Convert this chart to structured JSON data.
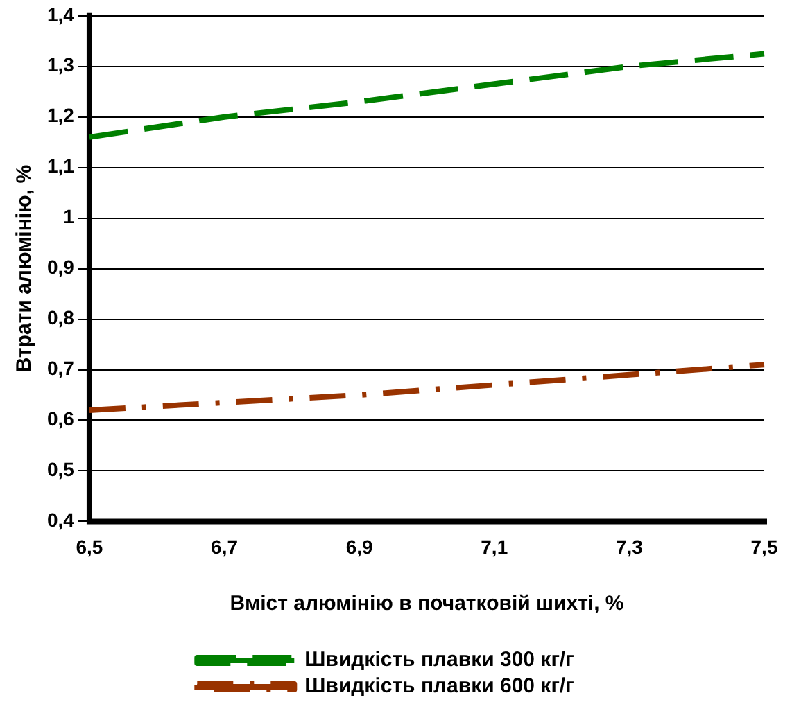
{
  "chart_data": {
    "type": "line",
    "xlabel": "Вміст алюмінію в початковій шихті, %",
    "ylabel": "Втрати алюмінію, %",
    "x": [
      6.5,
      6.7,
      6.9,
      7.1,
      7.3,
      7.5
    ],
    "series": [
      {
        "name": "Швидкість плавки 300 кг/г",
        "color": "#008000",
        "line_style": "dashed",
        "values": [
          1.16,
          1.2,
          1.23,
          1.265,
          1.3,
          1.325
        ]
      },
      {
        "name": "Швидкість плавки 600 кг/г",
        "color": "#993300",
        "line_style": "dashdot",
        "values": [
          0.62,
          0.635,
          0.65,
          0.67,
          0.69,
          0.71
        ]
      }
    ],
    "xlim": [
      6.5,
      7.5
    ],
    "xticks": [
      {
        "value": 6.5,
        "label": "6,5"
      },
      {
        "value": 6.7,
        "label": "6,7"
      },
      {
        "value": 6.9,
        "label": "6,9"
      },
      {
        "value": 7.1,
        "label": "7,1"
      },
      {
        "value": 7.3,
        "label": "7,3"
      },
      {
        "value": 7.5,
        "label": "7,5"
      }
    ],
    "ylim": [
      0.4,
      1.4
    ],
    "yticks": [
      {
        "value": 0.4,
        "label": "0,4"
      },
      {
        "value": 0.5,
        "label": "0,5"
      },
      {
        "value": 0.6,
        "label": "0,6"
      },
      {
        "value": 0.7,
        "label": "0,7"
      },
      {
        "value": 0.8,
        "label": "0,8"
      },
      {
        "value": 0.9,
        "label": "0,9"
      },
      {
        "value": 1,
        "label": "1"
      },
      {
        "value": 1.1,
        "label": "1,1"
      },
      {
        "value": 1.2,
        "label": "1,2"
      },
      {
        "value": 1.3,
        "label": "1,3"
      },
      {
        "value": 1.4,
        "label": "1,4"
      }
    ],
    "grid": "y",
    "legend": "bottom",
    "marker": "none"
  }
}
